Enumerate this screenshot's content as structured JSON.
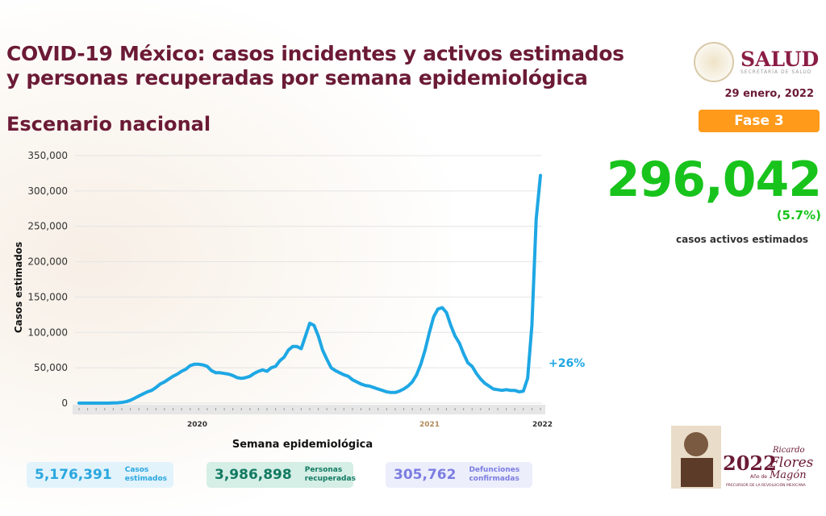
{
  "header": {
    "title_line1": "COVID-19 México: casos incidentes y activos estimados",
    "title_line2": "y personas recuperadas por semana epidemiológica",
    "subtitle": "Escenario nacional"
  },
  "logo": {
    "name": "SALUD",
    "sub": "SECRETARÍA DE SALUD"
  },
  "date": "29 enero, 2022",
  "phase": "Fase 3",
  "active": {
    "value": "296,042",
    "percent": "(5.7%)",
    "label": "casos activos estimados"
  },
  "summary": [
    {
      "value": "5,176,391",
      "label1": "Casos",
      "label2": "estimados",
      "color": "#2aa7e0",
      "bg": "#e2f3fb"
    },
    {
      "value": "3,986,898",
      "label1": "Personas",
      "label2": "recuperadas",
      "color": "#127a62",
      "bg": "#d5eee6"
    },
    {
      "value": "305,762",
      "label1": "Defunciones",
      "label2": "confirmadas",
      "color": "#7b7de0",
      "bg": "#eceefc"
    }
  ],
  "footer_logo": {
    "year": "2022",
    "text1": "Ricardo",
    "text2": "Flores",
    "text3": "Magón",
    "text4": "Año de",
    "text5": "PRECURSOR DE LA REVOLUCIÓN MEXICANA"
  },
  "chart_data": {
    "type": "line",
    "xlabel": "Semana epidemiológica",
    "ylabel": "Casos estimados",
    "ylim": [
      0,
      350000
    ],
    "yticks": [
      0,
      50000,
      100000,
      150000,
      200000,
      250000,
      300000,
      350000
    ],
    "ytick_labels": [
      "0",
      "50,000",
      "100,000",
      "150,000",
      "200,000",
      "250,000",
      "300,000",
      "350,000"
    ],
    "year_labels": [
      "2020",
      "2021",
      "2022"
    ],
    "annotation": "+26%",
    "grid": true,
    "line_color": "#1ea7e4",
    "values": [
      0,
      0,
      0,
      0,
      0,
      0,
      0,
      0,
      200,
      500,
      1000,
      2000,
      4000,
      7000,
      10000,
      13000,
      16000,
      18000,
      22000,
      27000,
      30000,
      34000,
      38000,
      41000,
      45000,
      48000,
      53000,
      55000,
      55000,
      54000,
      52000,
      46000,
      43000,
      43000,
      42000,
      41000,
      39000,
      36000,
      35000,
      36000,
      38000,
      42000,
      45000,
      47000,
      45000,
      50000,
      52000,
      60000,
      65000,
      75000,
      80000,
      80000,
      77000,
      95000,
      113000,
      110000,
      95000,
      75000,
      62000,
      50000,
      46000,
      43000,
      40000,
      38000,
      33000,
      30000,
      27000,
      25000,
      24000,
      22000,
      20000,
      18000,
      16000,
      15000,
      15000,
      17000,
      20000,
      24000,
      30000,
      40000,
      55000,
      75000,
      100000,
      122000,
      133000,
      135000,
      128000,
      110000,
      95000,
      85000,
      70000,
      57000,
      52000,
      42000,
      34000,
      28000,
      24000,
      20000,
      19000,
      18000,
      19000,
      18000,
      18000,
      16000,
      17000,
      35000,
      110000,
      260000,
      322000
    ]
  }
}
